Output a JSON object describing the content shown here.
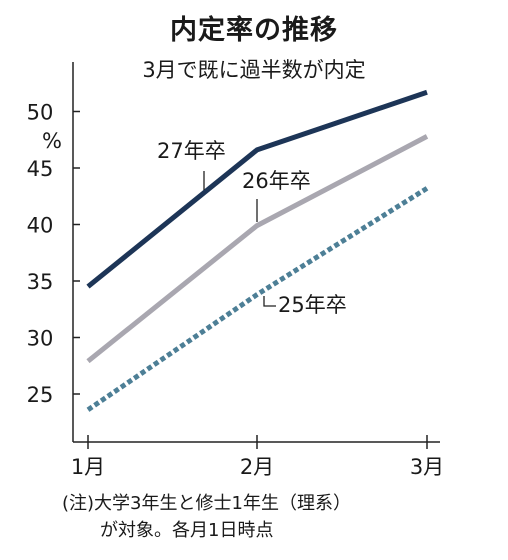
{
  "chart_data": {
    "type": "line",
    "title": "内定率の推移",
    "subtitle": "3月で既に過半数が内定",
    "ylabel": "%",
    "categories": [
      "1月",
      "2月",
      "3月"
    ],
    "ylim": [
      20,
      54
    ],
    "yticks": [
      25,
      30,
      35,
      40,
      45,
      50
    ],
    "series": [
      {
        "name": "27年卒",
        "values": [
          34.5,
          46.6,
          51.7
        ],
        "color": "#1d3557",
        "style": "solid"
      },
      {
        "name": "26年卒",
        "values": [
          27.9,
          39.9,
          47.8
        ],
        "color": "#a9a7b0",
        "style": "solid"
      },
      {
        "name": "25年卒",
        "values": [
          23.6,
          33.8,
          43.2
        ],
        "color": "#4d7f96",
        "style": "dotted"
      }
    ],
    "grid": false,
    "note_line1": "(注)大学3年生と修士1年生（理系）",
    "note_line2": "が対象。各月1日時点"
  }
}
